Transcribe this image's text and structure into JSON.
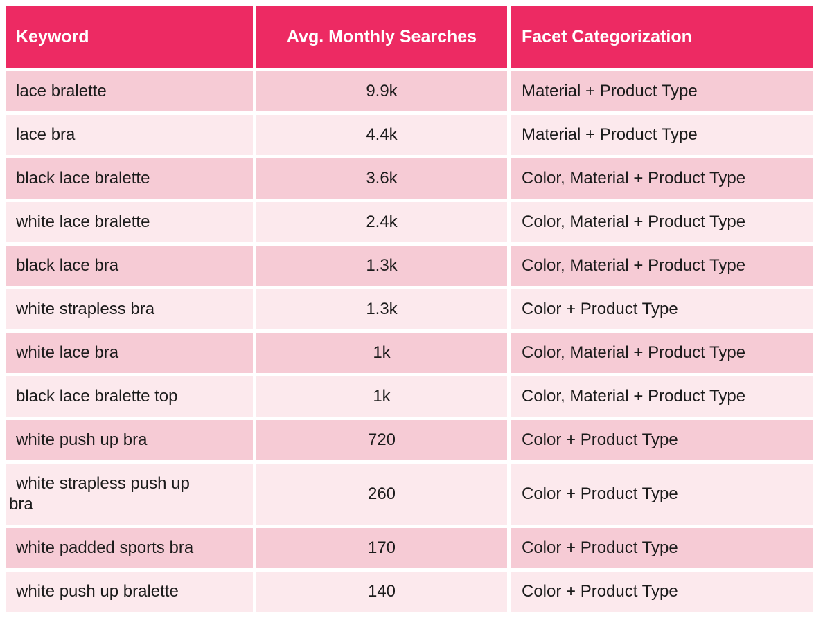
{
  "chart_data": {
    "type": "table",
    "columns": [
      "Keyword",
      "Avg. Monthly Searches",
      "Facet Categorization"
    ],
    "rows": [
      {
        "keyword": "lace bralette",
        "searches": "9.9k",
        "facets": "Material + Product Type"
      },
      {
        "keyword": "lace bra",
        "searches": "4.4k",
        "facets": "Material + Product Type"
      },
      {
        "keyword": "black lace bralette",
        "searches": "3.6k",
        "facets": "Color, Material + Product Type"
      },
      {
        "keyword": "white lace bralette",
        "searches": "2.4k",
        "facets": "Color, Material + Product Type"
      },
      {
        "keyword": "black lace bra",
        "searches": "1.3k",
        "facets": "Color, Material + Product Type"
      },
      {
        "keyword": "white strapless bra",
        "searches": "1.3k",
        "facets": "Color + Product Type"
      },
      {
        "keyword": "white lace bra",
        "searches": "1k",
        "facets": "Color, Material + Product Type"
      },
      {
        "keyword": "black lace bralette top",
        "searches": "1k",
        "facets": "Color, Material + Product Type"
      },
      {
        "keyword": "white push up bra",
        "searches": "720",
        "facets": "Color + Product Type"
      },
      {
        "keyword": "white strapless push up\nbra",
        "searches": "260",
        "facets": "Color + Product Type"
      },
      {
        "keyword": "white padded sports bra",
        "searches": "170",
        "facets": "Color + Product Type"
      },
      {
        "keyword": "white push up bralette",
        "searches": "140",
        "facets": "Color + Product Type"
      }
    ]
  },
  "theme": {
    "header_bg": "#ED2A63",
    "header_text": "#FFFFFF",
    "row_dark": "#F6CBD5",
    "row_light": "#FCE9ED",
    "gap": "#FFFFFF",
    "body_text": "#1B1B1B"
  }
}
